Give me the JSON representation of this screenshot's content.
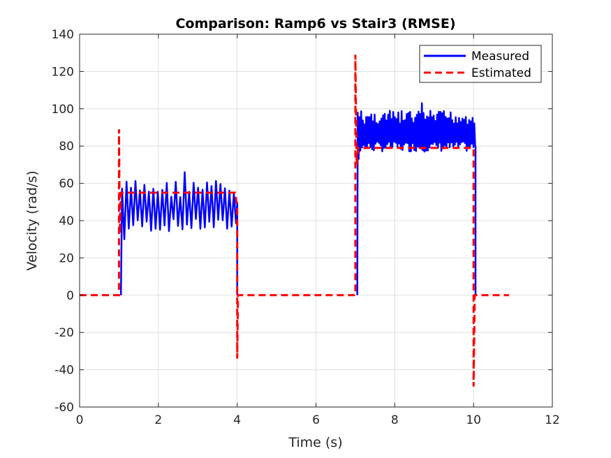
{
  "chart_data": {
    "type": "line",
    "title": "Comparison: Ramp6 vs Stair3 (RMSE)",
    "xlabel": "Time (s)",
    "ylabel": "Velocity (rad/s)",
    "xlim": [
      0,
      12
    ],
    "ylim": [
      -60,
      140
    ],
    "xticks": [
      0,
      2,
      4,
      6,
      8,
      10,
      12
    ],
    "yticks": [
      -60,
      -40,
      -20,
      0,
      20,
      40,
      60,
      80,
      100,
      120,
      140
    ],
    "xtick_labels": [
      "0",
      "2",
      "4",
      "6",
      "8",
      "10",
      "12"
    ],
    "ytick_labels": [
      "-60",
      "-40",
      "-20",
      "0",
      "20",
      "40",
      "60",
      "80",
      "100",
      "120",
      "140"
    ],
    "grid": true,
    "legend_position": "top-right",
    "series": [
      {
        "name": "Measured",
        "color": "#0000ff",
        "style": "solid",
        "segments": [
          {
            "t_start": 1.05,
            "t_end": 4.0,
            "level_low": 34,
            "level_high": 62,
            "peak": 66,
            "oscillations": 26
          },
          {
            "t_start": 7.05,
            "t_end": 10.05,
            "level_low": 77,
            "level_high": 99,
            "peak": 103,
            "oscillations": 70
          }
        ]
      },
      {
        "name": "Estimated",
        "color": "#ff0000",
        "style": "dashed",
        "x": [
          0,
          1.0,
          1.0,
          1.02,
          1.05,
          1.05,
          3.95,
          4.0,
          4.0,
          4.02,
          7.0,
          7.0,
          7.03,
          7.07,
          7.2,
          9.98,
          10.0,
          10.0,
          10.03,
          10.9
        ],
        "y": [
          0,
          0,
          89,
          33,
          55,
          55,
          55,
          47,
          -34,
          0,
          0,
          129,
          70,
          79,
          79,
          79,
          79,
          -49,
          0,
          0
        ]
      }
    ]
  }
}
